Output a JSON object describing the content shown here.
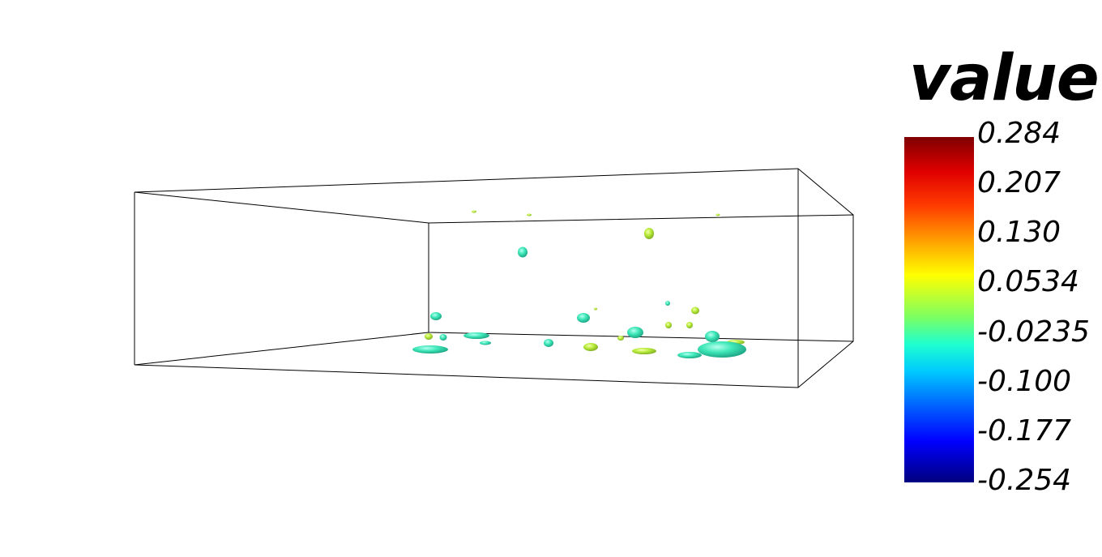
{
  "scalar_bar": {
    "title": "value",
    "ticks": [
      "0.284",
      "0.207",
      "0.130",
      "0.0534",
      "-0.0235",
      "-0.100",
      "-0.177",
      "-0.254"
    ],
    "range": [
      -0.254,
      0.284
    ],
    "colormap": [
      "#7f0000",
      "#e00000",
      "#ff3c00",
      "#ffa000",
      "#ffff00",
      "#7dff60",
      "#1effd0",
      "#00c8ff",
      "#0060ff",
      "#0000ff",
      "#00007f"
    ]
  },
  "scene": {
    "bounding_box": "wireframe",
    "glyph_colors": [
      "#2ee6b0",
      "#a8e63a",
      "#c8f03c"
    ]
  }
}
